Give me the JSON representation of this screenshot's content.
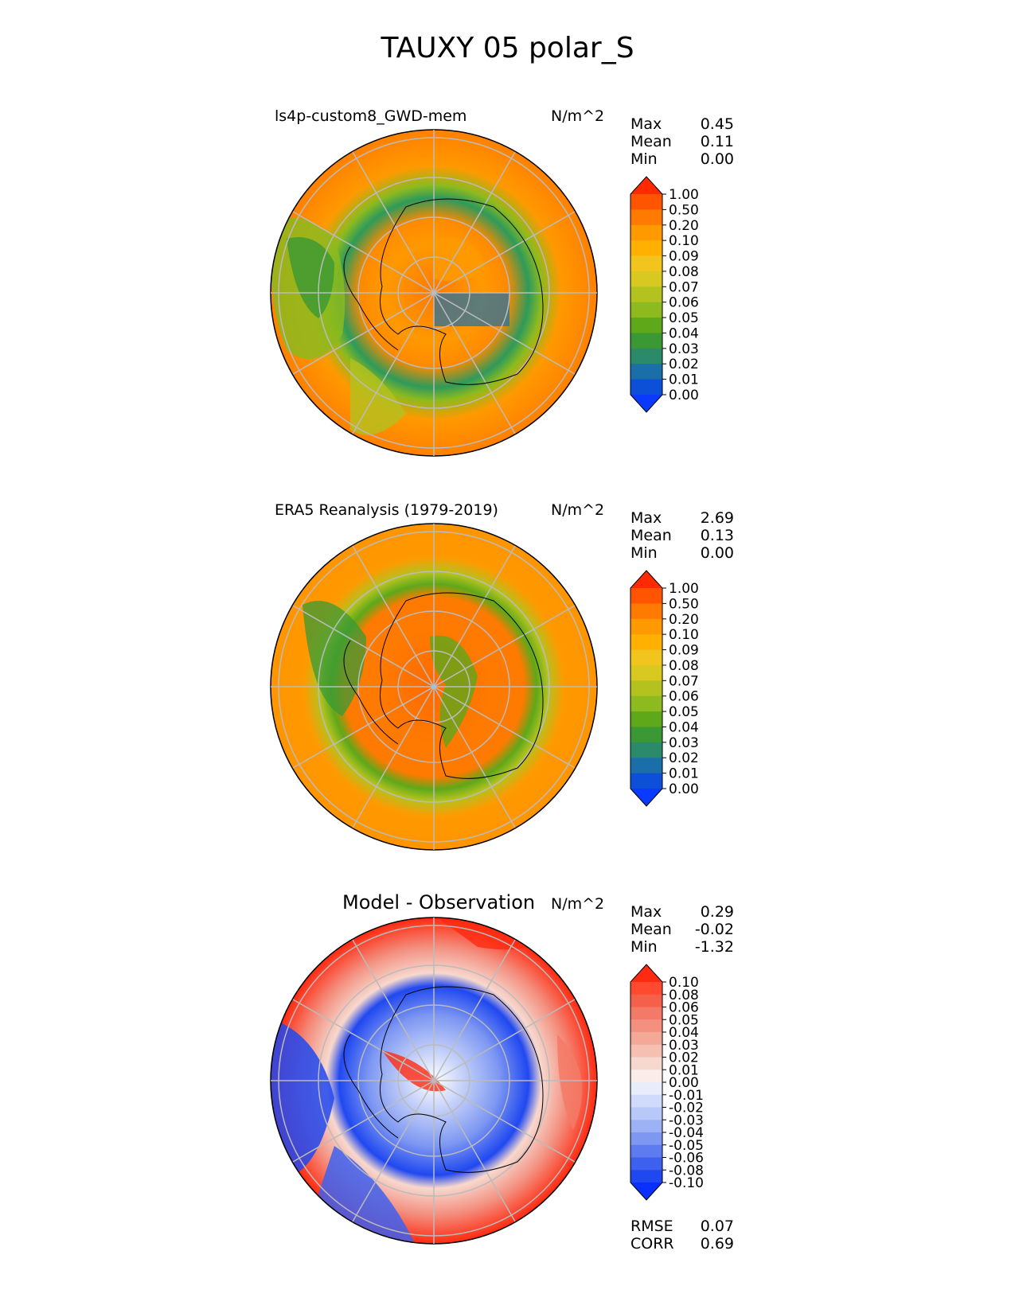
{
  "figure": {
    "title": "TAUXY 05 polar_S",
    "units_label": "N/m^2"
  },
  "panels": [
    {
      "id": "test",
      "subtitle": "ls4p-custom8_GWD-mem",
      "units": "N/m^2",
      "stats": [
        {
          "label": "Max",
          "value": "0.45"
        },
        {
          "label": "Mean",
          "value": "0.11"
        },
        {
          "label": "Min",
          "value": "0.00"
        }
      ],
      "colorbar": {
        "levels": [
          "1.00",
          "0.50",
          "0.20",
          "0.10",
          "0.09",
          "0.08",
          "0.07",
          "0.06",
          "0.05",
          "0.04",
          "0.03",
          "0.02",
          "0.01",
          "0.00"
        ],
        "colors": [
          "#ff2a00",
          "#ff5500",
          "#ff7a00",
          "#ff9900",
          "#ffb000",
          "#f2c41e",
          "#d9c81f",
          "#b3c21f",
          "#8cba1f",
          "#5ea81a",
          "#3a9935",
          "#2a8a6a",
          "#1b6fa8",
          "#0d50d8",
          "#0a3aff"
        ]
      }
    },
    {
      "id": "reference",
      "subtitle": "ERA5 Reanalysis (1979-2019)",
      "units": "N/m^2",
      "stats": [
        {
          "label": "Max",
          "value": "2.69"
        },
        {
          "label": "Mean",
          "value": "0.13"
        },
        {
          "label": "Min",
          "value": "0.00"
        }
      ],
      "colorbar": {
        "levels": [
          "1.00",
          "0.50",
          "0.20",
          "0.10",
          "0.09",
          "0.08",
          "0.07",
          "0.06",
          "0.05",
          "0.04",
          "0.03",
          "0.02",
          "0.01",
          "0.00"
        ],
        "colors": [
          "#ff2a00",
          "#ff5500",
          "#ff7a00",
          "#ff9900",
          "#ffb000",
          "#f2c41e",
          "#d9c81f",
          "#b3c21f",
          "#8cba1f",
          "#5ea81a",
          "#3a9935",
          "#2a8a6a",
          "#1b6fa8",
          "#0d50d8",
          "#0a3aff"
        ]
      }
    },
    {
      "id": "difference",
      "subtitle": "Model - Observation",
      "units": "N/m^2",
      "stats": [
        {
          "label": "Max",
          "value": "0.29"
        },
        {
          "label": "Mean",
          "value": "-0.02"
        },
        {
          "label": "Min",
          "value": "-1.32"
        }
      ],
      "metrics": [
        {
          "label": "RMSE",
          "value": "0.07"
        },
        {
          "label": "CORR",
          "value": "0.69"
        }
      ],
      "colorbar": {
        "levels": [
          "0.10",
          "0.08",
          "0.06",
          "0.05",
          "0.04",
          "0.03",
          "0.02",
          "0.01",
          "0.00",
          "-0.01",
          "-0.02",
          "-0.03",
          "-0.04",
          "-0.05",
          "-0.06",
          "-0.08",
          "-0.10"
        ],
        "colors": [
          "#ff2a10",
          "#ff4a30",
          "#f5604a",
          "#f37a66",
          "#f39080",
          "#f4a898",
          "#f5c0b2",
          "#f7d8ce",
          "#fbecea",
          "#e8ecfb",
          "#d0dafb",
          "#b8c8f8",
          "#9cb2f5",
          "#7e98f2",
          "#5e7cef",
          "#3e60ee",
          "#2048f0",
          "#0a30ff"
        ]
      }
    }
  ],
  "chart_data": [
    {
      "type": "heatmap",
      "projection": "south-polar-stereographic",
      "title": "ls4p-custom8_GWD-mem",
      "units": "N/m^2",
      "max": 0.45,
      "mean": 0.11,
      "min": 0.0,
      "levels": [
        0.0,
        0.01,
        0.02,
        0.03,
        0.04,
        0.05,
        0.06,
        0.07,
        0.08,
        0.09,
        0.1,
        0.2,
        0.5,
        1.0
      ]
    },
    {
      "type": "heatmap",
      "projection": "south-polar-stereographic",
      "title": "ERA5 Reanalysis (1979-2019)",
      "units": "N/m^2",
      "max": 2.69,
      "mean": 0.13,
      "min": 0.0,
      "levels": [
        0.0,
        0.01,
        0.02,
        0.03,
        0.04,
        0.05,
        0.06,
        0.07,
        0.08,
        0.09,
        0.1,
        0.2,
        0.5,
        1.0
      ]
    },
    {
      "type": "heatmap",
      "projection": "south-polar-stereographic",
      "title": "Model - Observation",
      "units": "N/m^2",
      "max": 0.29,
      "mean": -0.02,
      "min": -1.32,
      "rmse": 0.07,
      "corr": 0.69,
      "levels": [
        -0.1,
        -0.08,
        -0.06,
        -0.05,
        -0.04,
        -0.03,
        -0.02,
        -0.01,
        0.0,
        0.01,
        0.02,
        0.03,
        0.04,
        0.05,
        0.06,
        0.08,
        0.1
      ]
    }
  ]
}
